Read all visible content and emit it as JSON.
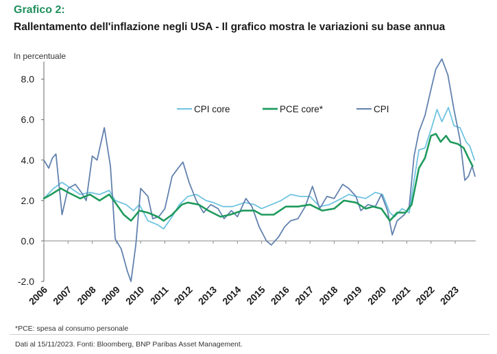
{
  "header": {
    "figure_label": "Grafico 2:",
    "title": "Rallentamento dell'inflazione negli USA - Il grafico mostra le variazioni su base annua"
  },
  "footer": {
    "footnote": "*PCE: spesa al consumo personale",
    "source": "Dati al 15/11/2023. Fonti: Bloomberg, BNP Paribas Asset Management."
  },
  "chart_data": {
    "type": "line",
    "ylabel": "In percentuale",
    "ylim": [
      -2.0,
      8.8
    ],
    "xlim": [
      2006.0,
      2023.85
    ],
    "y_ticks": [
      -2.0,
      0.0,
      2.0,
      4.0,
      6.0,
      8.0
    ],
    "y_tick_labels": [
      "-2.0",
      "0.0",
      "2.0",
      "4.0",
      "6.0",
      "8.0"
    ],
    "x_ticks": [
      2006,
      2007,
      2008,
      2009,
      2010,
      2011,
      2012,
      2013,
      2014,
      2015,
      2016,
      2017,
      2018,
      2019,
      2020,
      2021,
      2022,
      2023
    ],
    "x_tick_labels": [
      "2006",
      "2007",
      "2008",
      "2009",
      "2010",
      "2011",
      "2012",
      "2013",
      "2014",
      "2015",
      "2016",
      "2017",
      "2018",
      "2019",
      "2020",
      "2021",
      "2022",
      "2023"
    ],
    "grid": false,
    "legend_position": "top-center",
    "series": [
      {
        "name": "CPI core",
        "color": "#6ec3e0",
        "points": [
          [
            2006.0,
            2.1
          ],
          [
            2006.4,
            2.6
          ],
          [
            2006.75,
            2.9
          ],
          [
            2007.0,
            2.7
          ],
          [
            2007.5,
            2.3
          ],
          [
            2007.9,
            2.4
          ],
          [
            2008.3,
            2.3
          ],
          [
            2008.7,
            2.5
          ],
          [
            2008.95,
            2.0
          ],
          [
            2009.4,
            1.8
          ],
          [
            2009.7,
            1.5
          ],
          [
            2009.95,
            1.8
          ],
          [
            2010.3,
            1.0
          ],
          [
            2010.7,
            0.8
          ],
          [
            2010.95,
            0.6
          ],
          [
            2011.3,
            1.2
          ],
          [
            2011.6,
            1.8
          ],
          [
            2011.95,
            2.2
          ],
          [
            2012.3,
            2.3
          ],
          [
            2012.7,
            2.0
          ],
          [
            2013.0,
            1.9
          ],
          [
            2013.4,
            1.7
          ],
          [
            2013.8,
            1.7
          ],
          [
            2014.3,
            1.9
          ],
          [
            2014.7,
            1.8
          ],
          [
            2015.0,
            1.6
          ],
          [
            2015.4,
            1.8
          ],
          [
            2015.8,
            2.0
          ],
          [
            2016.2,
            2.3
          ],
          [
            2016.6,
            2.2
          ],
          [
            2017.0,
            2.2
          ],
          [
            2017.4,
            1.7
          ],
          [
            2017.8,
            1.8
          ],
          [
            2018.3,
            2.1
          ],
          [
            2018.6,
            2.3
          ],
          [
            2018.9,
            2.2
          ],
          [
            2019.3,
            2.1
          ],
          [
            2019.7,
            2.4
          ],
          [
            2020.0,
            2.3
          ],
          [
            2020.3,
            1.4
          ],
          [
            2020.5,
            1.2
          ],
          [
            2020.8,
            1.6
          ],
          [
            2021.1,
            1.4
          ],
          [
            2021.3,
            3.0
          ],
          [
            2021.5,
            4.5
          ],
          [
            2021.75,
            4.6
          ],
          [
            2022.0,
            5.5
          ],
          [
            2022.25,
            6.5
          ],
          [
            2022.45,
            5.9
          ],
          [
            2022.72,
            6.6
          ],
          [
            2022.95,
            5.7
          ],
          [
            2023.2,
            5.6
          ],
          [
            2023.45,
            4.9
          ],
          [
            2023.6,
            4.7
          ],
          [
            2023.8,
            4.0
          ]
        ]
      },
      {
        "name": "PCE core*",
        "color": "#1e9a5c",
        "points": [
          [
            2006.0,
            2.1
          ],
          [
            2006.3,
            2.3
          ],
          [
            2006.7,
            2.6
          ],
          [
            2007.0,
            2.4
          ],
          [
            2007.5,
            2.1
          ],
          [
            2007.9,
            2.3
          ],
          [
            2008.3,
            2.0
          ],
          [
            2008.7,
            2.3
          ],
          [
            2008.95,
            1.9
          ],
          [
            2009.3,
            1.3
          ],
          [
            2009.6,
            1.0
          ],
          [
            2009.95,
            1.5
          ],
          [
            2010.3,
            1.4
          ],
          [
            2010.7,
            1.2
          ],
          [
            2010.95,
            1.0
          ],
          [
            2011.3,
            1.3
          ],
          [
            2011.7,
            1.8
          ],
          [
            2011.95,
            1.9
          ],
          [
            2012.4,
            1.8
          ],
          [
            2012.8,
            1.5
          ],
          [
            2013.3,
            1.2
          ],
          [
            2013.7,
            1.3
          ],
          [
            2014.2,
            1.5
          ],
          [
            2014.7,
            1.5
          ],
          [
            2015.0,
            1.3
          ],
          [
            2015.5,
            1.3
          ],
          [
            2016.0,
            1.7
          ],
          [
            2016.5,
            1.7
          ],
          [
            2017.0,
            1.8
          ],
          [
            2017.5,
            1.5
          ],
          [
            2018.0,
            1.6
          ],
          [
            2018.4,
            2.0
          ],
          [
            2018.9,
            1.9
          ],
          [
            2019.3,
            1.6
          ],
          [
            2019.6,
            1.7
          ],
          [
            2019.95,
            1.6
          ],
          [
            2020.3,
            1.0
          ],
          [
            2020.6,
            1.4
          ],
          [
            2020.95,
            1.4
          ],
          [
            2021.2,
            1.8
          ],
          [
            2021.5,
            3.6
          ],
          [
            2021.75,
            4.1
          ],
          [
            2022.0,
            5.2
          ],
          [
            2022.2,
            5.3
          ],
          [
            2022.4,
            4.9
          ],
          [
            2022.62,
            5.2
          ],
          [
            2022.8,
            4.9
          ],
          [
            2023.1,
            4.8
          ],
          [
            2023.35,
            4.6
          ],
          [
            2023.55,
            4.1
          ],
          [
            2023.72,
            3.7
          ]
        ]
      },
      {
        "name": "CPI",
        "color": "#6181ae",
        "points": [
          [
            2006.0,
            4.0
          ],
          [
            2006.2,
            3.6
          ],
          [
            2006.35,
            4.1
          ],
          [
            2006.5,
            4.3
          ],
          [
            2006.75,
            1.3
          ],
          [
            2007.0,
            2.6
          ],
          [
            2007.3,
            2.8
          ],
          [
            2007.55,
            2.4
          ],
          [
            2007.75,
            2.0
          ],
          [
            2008.0,
            4.2
          ],
          [
            2008.2,
            4.0
          ],
          [
            2008.5,
            5.6
          ],
          [
            2008.75,
            3.7
          ],
          [
            2008.95,
            0.1
          ],
          [
            2009.2,
            -0.4
          ],
          [
            2009.45,
            -1.5
          ],
          [
            2009.6,
            -2.0
          ],
          [
            2009.8,
            -0.2
          ],
          [
            2010.0,
            2.6
          ],
          [
            2010.3,
            2.2
          ],
          [
            2010.5,
            1.1
          ],
          [
            2010.75,
            1.2
          ],
          [
            2011.0,
            1.6
          ],
          [
            2011.3,
            3.2
          ],
          [
            2011.55,
            3.6
          ],
          [
            2011.75,
            3.9
          ],
          [
            2012.0,
            2.9
          ],
          [
            2012.3,
            2.0
          ],
          [
            2012.6,
            1.4
          ],
          [
            2012.9,
            1.8
          ],
          [
            2013.2,
            1.6
          ],
          [
            2013.45,
            1.1
          ],
          [
            2013.75,
            1.5
          ],
          [
            2014.0,
            1.2
          ],
          [
            2014.35,
            2.1
          ],
          [
            2014.6,
            1.7
          ],
          [
            2014.9,
            0.7
          ],
          [
            2015.2,
            0.0
          ],
          [
            2015.4,
            -0.2
          ],
          [
            2015.7,
            0.2
          ],
          [
            2015.95,
            0.7
          ],
          [
            2016.2,
            1.0
          ],
          [
            2016.5,
            1.1
          ],
          [
            2016.8,
            1.7
          ],
          [
            2017.1,
            2.7
          ],
          [
            2017.4,
            1.6
          ],
          [
            2017.7,
            2.2
          ],
          [
            2018.0,
            2.1
          ],
          [
            2018.35,
            2.8
          ],
          [
            2018.6,
            2.6
          ],
          [
            2018.9,
            2.2
          ],
          [
            2019.1,
            1.5
          ],
          [
            2019.4,
            1.8
          ],
          [
            2019.7,
            1.7
          ],
          [
            2019.95,
            2.3
          ],
          [
            2020.2,
            1.5
          ],
          [
            2020.4,
            0.3
          ],
          [
            2020.6,
            1.0
          ],
          [
            2020.9,
            1.3
          ],
          [
            2021.1,
            1.7
          ],
          [
            2021.3,
            4.2
          ],
          [
            2021.5,
            5.4
          ],
          [
            2021.75,
            6.2
          ],
          [
            2022.0,
            7.5
          ],
          [
            2022.2,
            8.5
          ],
          [
            2022.45,
            9.0
          ],
          [
            2022.7,
            8.2
          ],
          [
            2022.95,
            6.5
          ],
          [
            2023.2,
            5.0
          ],
          [
            2023.4,
            3.0
          ],
          [
            2023.55,
            3.2
          ],
          [
            2023.7,
            3.7
          ],
          [
            2023.82,
            3.2
          ]
        ]
      }
    ]
  }
}
